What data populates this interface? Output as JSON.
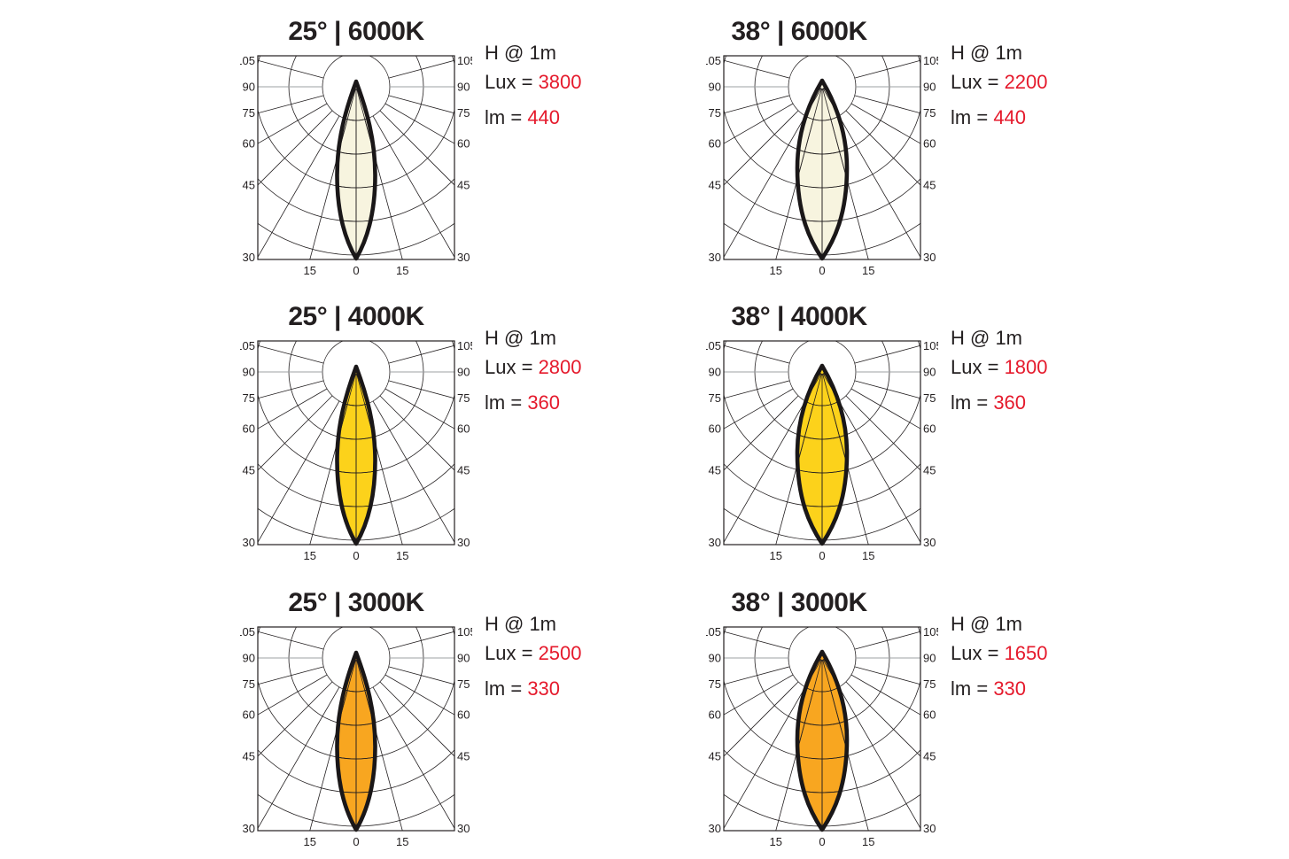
{
  "page": {
    "background": "#ffffff"
  },
  "colors": {
    "text": "#231f20",
    "red": "#e51a2c",
    "grid": "#231f20",
    "grid_horizontal_90": "#9ea0a3",
    "frame": "#231f20",
    "lobe_outline": "#1a1718"
  },
  "chart_data": {
    "type": "polar-beam-diagram-grid",
    "description": "Six polar luminous-intensity diagrams (beam spread vs angle) for two beam angles at three color temperatures",
    "axis": {
      "side_labels": [
        "105",
        "90",
        "75",
        "60",
        "45",
        "30"
      ],
      "side_angles_deg": [
        105,
        90,
        75,
        60,
        45,
        30
      ],
      "bottom_labels": [
        "15",
        "0",
        "15"
      ],
      "bottom_angles_deg": [
        -15,
        0,
        15
      ],
      "angle_step_deg": 15,
      "rings": 5
    },
    "plots": [
      {
        "title": "25° | 6000K",
        "beam_angle_deg": 25,
        "cct": "6000K",
        "h_label": "H @ 1m",
        "lux_label": "Lux =",
        "lux_value": "3800",
        "lm_label": "lm =",
        "lm_value": "440",
        "fill": "#f7f4df"
      },
      {
        "title": "38° | 6000K",
        "beam_angle_deg": 38,
        "cct": "6000K",
        "h_label": "H @ 1m",
        "lux_label": "Lux =",
        "lux_value": "2200",
        "lm_label": "lm =",
        "lm_value": "440",
        "fill": "#f7f4df"
      },
      {
        "title": "25° | 4000K",
        "beam_angle_deg": 25,
        "cct": "4000K",
        "h_label": "H @ 1m",
        "lux_label": "Lux =",
        "lux_value": "2800",
        "lm_label": "lm =",
        "lm_value": "360",
        "fill": "#fcd21b"
      },
      {
        "title": "38° | 4000K",
        "beam_angle_deg": 38,
        "cct": "4000K",
        "h_label": "H @ 1m",
        "lux_label": "Lux =",
        "lux_value": "1800",
        "lm_label": "lm =",
        "lm_value": "360",
        "fill": "#fcd21b"
      },
      {
        "title": "25° | 3000K",
        "beam_angle_deg": 25,
        "cct": "3000K",
        "h_label": "H @ 1m",
        "lux_label": "Lux =",
        "lux_value": "2500",
        "lm_label": "lm =",
        "lm_value": "330",
        "fill": "#f8a620"
      },
      {
        "title": "38° | 3000K",
        "beam_angle_deg": 38,
        "cct": "3000K",
        "h_label": "H @ 1m",
        "lux_label": "Lux =",
        "lux_value": "1650",
        "lm_label": "lm =",
        "lm_value": "330",
        "fill": "#f8a620"
      }
    ]
  }
}
